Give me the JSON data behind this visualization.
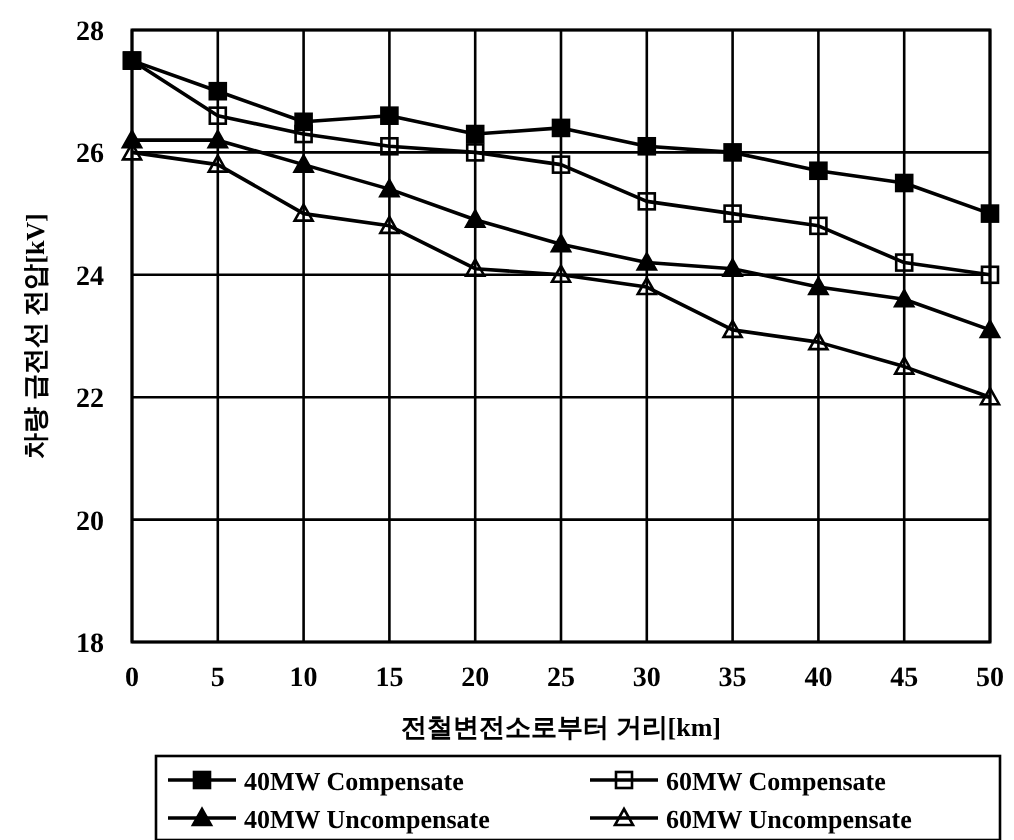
{
  "chart_data": {
    "type": "line",
    "xlabel": "전철변전소로부터 거리[km]",
    "ylabel": "차량 급전선 전압[kV]",
    "x": [
      0,
      5,
      10,
      15,
      20,
      25,
      30,
      35,
      40,
      45,
      50
    ],
    "xlim": [
      0,
      50
    ],
    "xticks": [
      0,
      5,
      10,
      15,
      20,
      25,
      30,
      35,
      40,
      45,
      50
    ],
    "ylim": [
      18,
      28
    ],
    "yticks": [
      18,
      20,
      22,
      24,
      26,
      28
    ],
    "grid": true,
    "legend": "bottom",
    "line_style": "solid",
    "series": [
      {
        "name": "40MW Compensate",
        "color": "#000000",
        "marker": "square",
        "values": [
          27.5,
          27.0,
          26.5,
          26.6,
          26.3,
          26.4,
          26.1,
          26.0,
          25.7,
          25.5,
          25.0
        ]
      },
      {
        "name": "60MW Compensate",
        "color": "#000000",
        "marker": "square-open",
        "values": [
          27.5,
          26.6,
          26.3,
          26.1,
          26.0,
          25.8,
          25.2,
          25.0,
          24.8,
          24.2,
          24.0
        ]
      },
      {
        "name": "40MW Uncompensate",
        "color": "#000000",
        "marker": "triangle",
        "values": [
          26.2,
          26.2,
          25.8,
          25.4,
          24.9,
          24.5,
          24.2,
          24.1,
          23.8,
          23.6,
          23.1
        ]
      },
      {
        "name": "60MW Uncompensate",
        "color": "#000000",
        "marker": "triangle-open",
        "values": [
          26.0,
          25.8,
          25.0,
          24.8,
          24.1,
          24.0,
          23.8,
          23.1,
          22.9,
          22.5,
          22.0
        ]
      }
    ]
  }
}
